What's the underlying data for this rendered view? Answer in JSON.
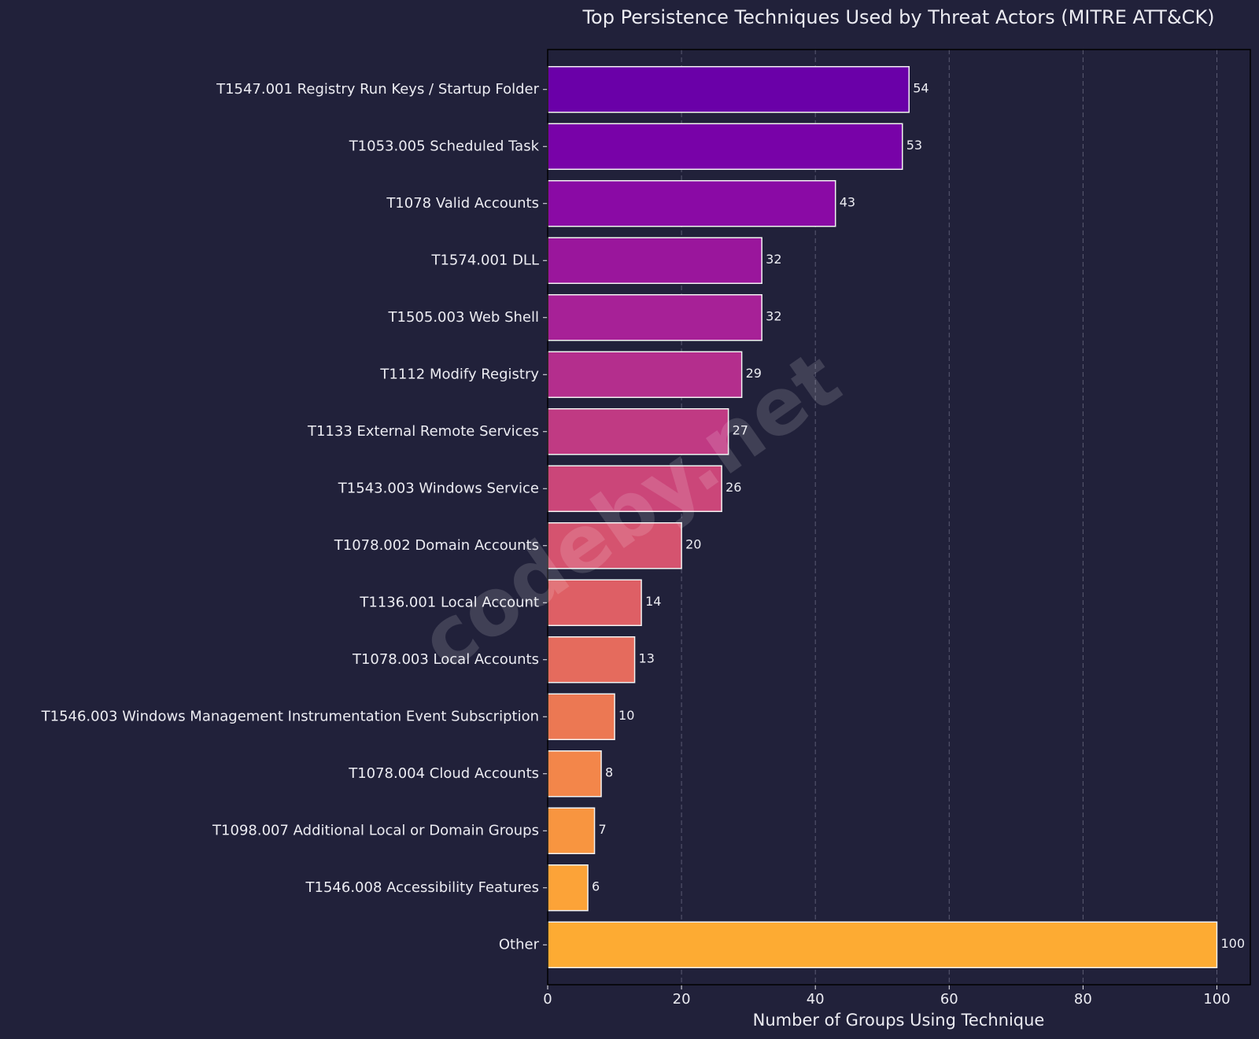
{
  "chart_data": {
    "type": "barh",
    "title": "Top Persistence Techniques Used by Threat Actors (MITRE ATT&CK)",
    "x_label": "Number of Groups Using Technique",
    "watermark": "codeby.net",
    "categories": [
      "T1547.001 Registry Run Keys / Startup Folder",
      "T1053.005 Scheduled Task",
      "T1078 Valid Accounts",
      "T1574.001 DLL",
      "T1505.003 Web Shell",
      "T1112 Modify Registry",
      "T1133 External Remote Services",
      "T1543.003 Windows Service",
      "T1078.002 Domain Accounts",
      "T1136.001 Local Account",
      "T1078.003 Local Accounts",
      "T1546.003 Windows Management Instrumentation Event Subscription",
      "T1078.004 Cloud Accounts",
      "T1098.007 Additional Local or Domain Groups",
      "T1546.008 Accessibility Features",
      "Other"
    ],
    "values": [
      54,
      53,
      43,
      32,
      32,
      29,
      27,
      26,
      20,
      14,
      13,
      10,
      8,
      7,
      6,
      100
    ],
    "colors": [
      "#6a00a8",
      "#7802a8",
      "#8a0aa5",
      "#9a169c",
      "#a72197",
      "#b42e8d",
      "#c03a83",
      "#cb4679",
      "#d5536f",
      "#de5f65",
      "#e56b5d",
      "#ec7853",
      "#f3864a",
      "#f89540",
      "#fca338",
      "#fdab33"
    ],
    "xlim": [
      0,
      105
    ],
    "xticks": [
      0,
      20,
      40,
      60,
      80,
      100
    ],
    "grid": true
  }
}
